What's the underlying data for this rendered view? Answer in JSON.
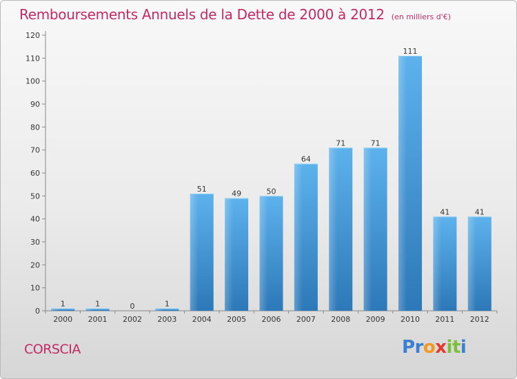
{
  "chart_data": {
    "type": "bar",
    "title": "Remboursements Annuels de la Dette de 2000 à 2012",
    "unit_note": "(en milliers d'€)",
    "categories": [
      "2000",
      "2001",
      "2002",
      "2003",
      "2004",
      "2005",
      "2006",
      "2007",
      "2008",
      "2009",
      "2010",
      "2011",
      "2012"
    ],
    "values": [
      1,
      1,
      0,
      1,
      51,
      49,
      50,
      64,
      71,
      71,
      111,
      41,
      41
    ],
    "ylim": [
      0,
      120
    ],
    "yticks": [
      0,
      10,
      20,
      30,
      40,
      50,
      60,
      70,
      80,
      90,
      100,
      110,
      120
    ],
    "grid": false,
    "xlabel": "",
    "ylabel": "",
    "bar_color": "#4a9de0"
  },
  "footer": {
    "place": "CORSCIA",
    "logo_letters": [
      "P",
      "r",
      "o",
      "x",
      "i",
      "t",
      "i"
    ],
    "logo_colors": [
      "#3b7fd1",
      "#3b7fd1",
      "#f29a1f",
      "#e23b2e",
      "#7bbf3a",
      "#7bbf3a",
      "#3b7fd1"
    ]
  },
  "colors": {
    "title": "#c22a64",
    "place": "#c22a64"
  }
}
